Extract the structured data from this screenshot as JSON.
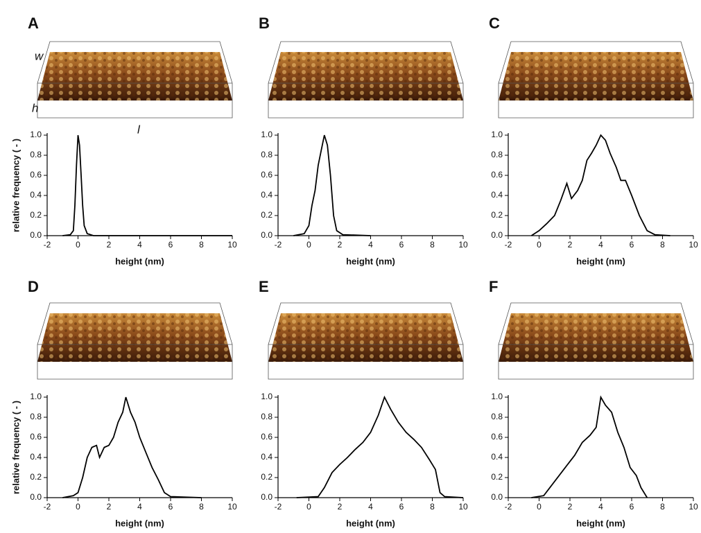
{
  "chart_data": [
    {
      "type": "line",
      "label": "A",
      "annotations": [
        "w",
        "h",
        "l"
      ],
      "ylabel": "relative frequency ( - )",
      "xlabel": "height (nm)",
      "color": "#000000",
      "x": [
        -1,
        -0.5,
        -0.3,
        -0.2,
        -0.1,
        0,
        0.1,
        0.2,
        0.3,
        0.4,
        0.6,
        1,
        2,
        10
      ],
      "values": [
        0,
        0.01,
        0.05,
        0.3,
        0.7,
        1.0,
        0.9,
        0.6,
        0.3,
        0.1,
        0.02,
        0,
        0,
        0
      ],
      "xlim": [
        -2,
        10
      ],
      "xticks": [
        -2,
        0,
        2,
        4,
        6,
        8,
        10
      ],
      "ylim": [
        0,
        1
      ],
      "yticks": [
        {
          "value": 0,
          "label": "0.0"
        },
        0.2,
        0.4,
        0.6,
        0.8,
        {
          "value": 1,
          "label": "1.0"
        }
      ]
    },
    {
      "type": "line",
      "label": "B",
      "xlabel": "height (nm)",
      "color": "#000000",
      "x": [
        -1,
        -0.3,
        0,
        0.2,
        0.4,
        0.6,
        0.8,
        1.0,
        1.2,
        1.4,
        1.6,
        1.8,
        2.2,
        4
      ],
      "values": [
        0,
        0.02,
        0.1,
        0.3,
        0.45,
        0.7,
        0.85,
        1.0,
        0.9,
        0.6,
        0.2,
        0.05,
        0.01,
        0
      ],
      "xlim": [
        -2,
        10
      ],
      "xticks": [
        -2,
        0,
        2,
        4,
        6,
        8,
        10
      ],
      "ylim": [
        0,
        1
      ],
      "yticks": [
        {
          "value": 0,
          "label": "0.0"
        },
        0.2,
        0.4,
        0.6,
        0.8,
        {
          "value": 1,
          "label": "1.0"
        }
      ]
    },
    {
      "type": "line",
      "label": "C",
      "xlabel": "height (nm)",
      "color": "#000000",
      "x": [
        -0.5,
        0,
        0.5,
        1,
        1.4,
        1.8,
        2.1,
        2.5,
        2.8,
        3.1,
        3.4,
        3.7,
        4,
        4.3,
        4.6,
        5,
        5.3,
        5.6,
        6,
        6.5,
        7,
        7.5,
        8.5
      ],
      "values": [
        0,
        0.05,
        0.12,
        0.2,
        0.35,
        0.52,
        0.37,
        0.45,
        0.55,
        0.75,
        0.82,
        0.9,
        1.0,
        0.95,
        0.82,
        0.68,
        0.55,
        0.55,
        0.4,
        0.2,
        0.05,
        0.01,
        0
      ],
      "xlim": [
        -2,
        10
      ],
      "xticks": [
        -2,
        0,
        2,
        4,
        6,
        8,
        10
      ],
      "ylim": [
        0,
        1
      ],
      "yticks": [
        {
          "value": 0,
          "label": "0.0"
        },
        0.2,
        0.4,
        0.6,
        0.8,
        {
          "value": 1,
          "label": "1.0"
        }
      ]
    },
    {
      "type": "line",
      "label": "D",
      "ylabel": "relative frequency ( - )",
      "xlabel": "height (nm)",
      "color": "#000000",
      "x": [
        -1,
        -0.3,
        0,
        0.3,
        0.6,
        0.9,
        1.2,
        1.4,
        1.7,
        2,
        2.3,
        2.6,
        2.9,
        3.1,
        3.4,
        3.7,
        4,
        4.4,
        4.8,
        5.2,
        5.6,
        6,
        8
      ],
      "values": [
        0,
        0.02,
        0.05,
        0.2,
        0.4,
        0.5,
        0.52,
        0.4,
        0.5,
        0.52,
        0.6,
        0.75,
        0.85,
        1.0,
        0.85,
        0.75,
        0.6,
        0.45,
        0.3,
        0.18,
        0.05,
        0.01,
        0
      ],
      "xlim": [
        -2,
        10
      ],
      "xticks": [
        -2,
        0,
        2,
        4,
        6,
        8,
        10
      ],
      "ylim": [
        0,
        1
      ],
      "yticks": [
        {
          "value": 0,
          "label": "0.0"
        },
        0.2,
        0.4,
        0.6,
        0.8,
        {
          "value": 1,
          "label": "1.0"
        }
      ]
    },
    {
      "type": "line",
      "label": "E",
      "xlabel": "height (nm)",
      "color": "#000000",
      "x": [
        -0.8,
        0.6,
        1,
        1.5,
        2,
        2.5,
        3,
        3.5,
        4,
        4.5,
        4.9,
        5.3,
        5.8,
        6.3,
        6.8,
        7.3,
        7.8,
        8.2,
        8.5,
        8.8,
        10
      ],
      "values": [
        0,
        0.01,
        0.1,
        0.25,
        0.33,
        0.4,
        0.48,
        0.55,
        0.65,
        0.82,
        1.0,
        0.88,
        0.75,
        0.65,
        0.58,
        0.5,
        0.38,
        0.28,
        0.05,
        0.01,
        0
      ],
      "xlim": [
        -2,
        10
      ],
      "xticks": [
        -2,
        0,
        2,
        4,
        6,
        8,
        10
      ],
      "ylim": [
        0,
        1
      ],
      "yticks": [
        {
          "value": 0,
          "label": "0.0"
        },
        0.2,
        0.4,
        0.6,
        0.8,
        {
          "value": 1,
          "label": "1.0"
        }
      ]
    },
    {
      "type": "line",
      "label": "F",
      "xlabel": "height (nm)",
      "color": "#000000",
      "x": [
        -0.5,
        0.3,
        0.8,
        1.3,
        1.8,
        2.3,
        2.8,
        3.3,
        3.7,
        4,
        4.3,
        4.7,
        5.1,
        5.5,
        5.9,
        6.3,
        6.6,
        7
      ],
      "values": [
        0,
        0.02,
        0.12,
        0.22,
        0.32,
        0.42,
        0.55,
        0.62,
        0.7,
        1.0,
        0.92,
        0.85,
        0.65,
        0.5,
        0.3,
        0.22,
        0.1,
        0
      ],
      "xlim": [
        -2,
        10
      ],
      "xticks": [
        -2,
        0,
        2,
        4,
        6,
        8,
        10
      ],
      "ylim": [
        0,
        1
      ],
      "yticks": [
        {
          "value": 0,
          "label": "0.0"
        },
        0.2,
        0.4,
        0.6,
        0.8,
        {
          "value": 1,
          "label": "1.0"
        }
      ]
    }
  ]
}
